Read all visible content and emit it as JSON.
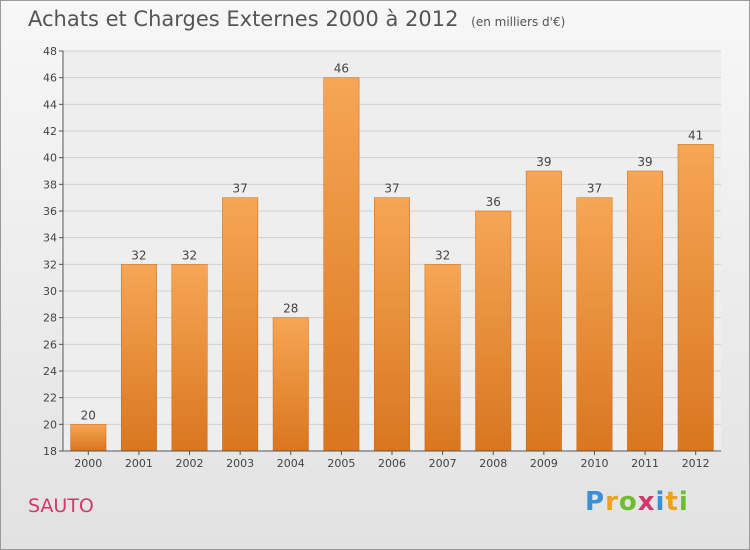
{
  "title": "Achats et Charges Externes 2000 à 2012",
  "subtitle": "(en milliers d'€)",
  "commune": "SAUTO",
  "brand": {
    "letters": [
      {
        "char": "P",
        "color": "#3a8fd6"
      },
      {
        "char": "r",
        "color": "#f0a020"
      },
      {
        "char": "o",
        "color": "#6fbd2f"
      },
      {
        "char": "x",
        "color": "#d2386e"
      },
      {
        "char": "i",
        "color": "#3a8fd6"
      },
      {
        "char": "t",
        "color": "#f0a020"
      },
      {
        "char": "i",
        "color": "#6fbd2f"
      }
    ]
  },
  "colors": {
    "bar_top": "#f6a655",
    "bar_bottom": "#d9761f",
    "grid": "#d0d0d0",
    "axis": "#555555"
  },
  "chart_data": {
    "type": "bar",
    "title": "Achats et Charges Externes 2000 à 2012",
    "subtitle": "(en milliers d'€)",
    "categories": [
      "2000",
      "2001",
      "2002",
      "2003",
      "2004",
      "2005",
      "2006",
      "2007",
      "2008",
      "2009",
      "2010",
      "2011",
      "2012"
    ],
    "values": [
      20,
      32,
      32,
      37,
      28,
      46,
      37,
      32,
      36,
      39,
      37,
      39,
      41
    ],
    "ylim": [
      18,
      48
    ],
    "yticks": [
      18,
      20,
      22,
      24,
      26,
      28,
      30,
      32,
      34,
      36,
      38,
      40,
      42,
      44,
      46,
      48
    ],
    "grid": true,
    "xlabel": "",
    "ylabel": ""
  }
}
